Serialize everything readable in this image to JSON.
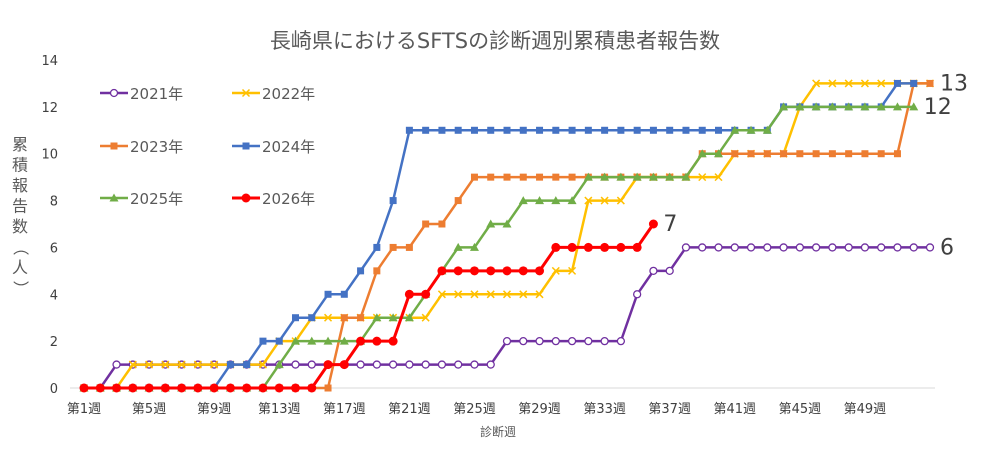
{
  "chart_data": {
    "type": "line",
    "title": "長崎県におけるSFTSの診断週別累積患者報告数",
    "xlabel": "診断週",
    "ylabel": "累積報告数（人）",
    "ylim": [
      0,
      14
    ],
    "yticks": [
      0,
      2,
      4,
      6,
      8,
      10,
      12,
      14
    ],
    "xtick_labels": [
      "第1週",
      "第5週",
      "第9週",
      "第13週",
      "第17週",
      "第21週",
      "第25週",
      "第29週",
      "第33週",
      "第37週",
      "第41週",
      "第45週",
      "第49週"
    ],
    "xtick_weeks": [
      1,
      5,
      9,
      13,
      17,
      21,
      25,
      29,
      33,
      37,
      41,
      45,
      49
    ],
    "weeks": 53,
    "grid": false,
    "legend": "top-left",
    "series": [
      {
        "name": "2021年",
        "color": "#7030A0",
        "marker": "open-circle",
        "values": [
          0,
          0,
          1,
          1,
          1,
          1,
          1,
          1,
          1,
          1,
          1,
          1,
          1,
          1,
          1,
          1,
          1,
          1,
          1,
          1,
          1,
          1,
          1,
          1,
          1,
          1,
          2,
          2,
          2,
          2,
          2,
          2,
          2,
          2,
          4,
          5,
          5,
          6,
          6,
          6,
          6,
          6,
          6,
          6,
          6,
          6,
          6,
          6,
          6,
          6,
          6,
          6,
          6
        ]
      },
      {
        "name": "2022年",
        "color": "#FFC000",
        "marker": "x",
        "values": [
          0,
          0,
          0,
          1,
          1,
          1,
          1,
          1,
          1,
          1,
          1,
          1,
          2,
          2,
          3,
          3,
          3,
          3,
          3,
          3,
          3,
          3,
          4,
          4,
          4,
          4,
          4,
          4,
          4,
          5,
          5,
          8,
          8,
          8,
          9,
          9,
          9,
          9,
          9,
          9,
          10,
          10,
          10,
          10,
          12,
          13,
          13,
          13,
          13,
          13,
          13,
          13,
          13
        ]
      },
      {
        "name": "2023年",
        "color": "#ED7D31",
        "marker": "square",
        "values": [
          0,
          0,
          0,
          0,
          0,
          0,
          0,
          0,
          0,
          0,
          0,
          0,
          0,
          0,
          0,
          0,
          3,
          3,
          5,
          6,
          6,
          7,
          7,
          8,
          9,
          9,
          9,
          9,
          9,
          9,
          9,
          9,
          9,
          9,
          9,
          9,
          9,
          9,
          10,
          10,
          10,
          10,
          10,
          10,
          10,
          10,
          10,
          10,
          10,
          10,
          10,
          13,
          13
        ]
      },
      {
        "name": "2024年",
        "color": "#4472C4",
        "marker": "square",
        "values": [
          0,
          0,
          0,
          0,
          0,
          0,
          0,
          0,
          0,
          1,
          1,
          2,
          2,
          3,
          3,
          4,
          4,
          5,
          6,
          8,
          11,
          11,
          11,
          11,
          11,
          11,
          11,
          11,
          11,
          11,
          11,
          11,
          11,
          11,
          11,
          11,
          11,
          11,
          11,
          11,
          11,
          11,
          11,
          12,
          12,
          12,
          12,
          12,
          12,
          12,
          13,
          13,
          null
        ]
      },
      {
        "name": "2025年",
        "color": "#70AD47",
        "marker": "triangle",
        "values": [
          0,
          0,
          0,
          0,
          0,
          0,
          0,
          0,
          0,
          0,
          0,
          0,
          1,
          2,
          2,
          2,
          2,
          2,
          3,
          3,
          3,
          4,
          5,
          6,
          6,
          7,
          7,
          8,
          8,
          8,
          8,
          9,
          9,
          9,
          9,
          9,
          9,
          9,
          10,
          10,
          11,
          11,
          11,
          12,
          12,
          12,
          12,
          12,
          12,
          12,
          12,
          12,
          null
        ]
      },
      {
        "name": "2026年",
        "color": "#FF0000",
        "marker": "filled-circle",
        "values": [
          0,
          0,
          0,
          0,
          0,
          0,
          0,
          0,
          0,
          0,
          0,
          0,
          0,
          0,
          0,
          1,
          1,
          2,
          2,
          2,
          4,
          4,
          5,
          5,
          5,
          5,
          5,
          5,
          5,
          6,
          6,
          6,
          6,
          6,
          6,
          7
        ]
      }
    ],
    "end_labels": [
      {
        "text": "13",
        "series": 2
      },
      {
        "text": "12",
        "series": 4
      },
      {
        "text": "6",
        "series": 0
      },
      {
        "text": "7",
        "series": 5
      }
    ]
  }
}
